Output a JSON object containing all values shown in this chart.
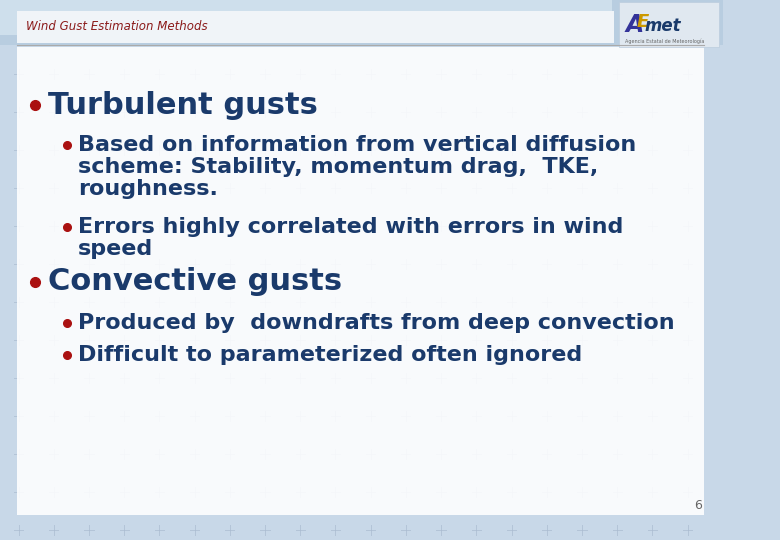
{
  "title": "Wind Gust Estimation Methods",
  "title_color": "#8B1a1a",
  "title_fontsize": 8.5,
  "main_bullet1": "Turbulent gusts",
  "main_bullet1_color": "#1a3a6b",
  "main_bullet1_fontsize": 22,
  "sub_bullet1a_line1": "Based on information from vertical diffusion",
  "sub_bullet1a_line2": "scheme: Stability, momentum drag,  TKE,",
  "sub_bullet1a_line3": "roughness.",
  "sub_bullet1b_line1": "Errors highly correlated with errors in wind",
  "sub_bullet1b_line2": "speed",
  "sub_bullet_color": "#1a3a6b",
  "sub_bullet_fontsize": 16,
  "main_bullet2": "Convective gusts",
  "main_bullet2_color": "#1a3a6b",
  "main_bullet2_fontsize": 22,
  "sub_bullet2a": "Produced by  downdrafts from deep convection",
  "sub_bullet2b": "Difficult to parameterized often ignored",
  "bullet_dot_color": "#aa1111",
  "slide_bg": "#c8d8e8",
  "cross_color": "#aabbd0",
  "header_bg": "#f0f4f8",
  "content_bg": "#ffffff",
  "page_number": "6",
  "page_num_color": "#666666",
  "page_num_fontsize": 9,
  "separator_color": "#aaaaaa",
  "logo_box_color": "#e0e8f0"
}
